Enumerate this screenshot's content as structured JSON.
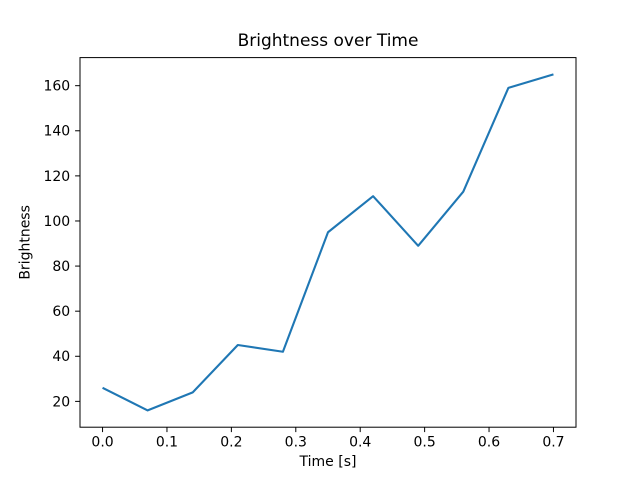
{
  "chart_data": {
    "type": "line",
    "title": "Brightness over Time",
    "xlabel": "Time [s]",
    "ylabel": "Brightness",
    "x": [
      0.0,
      0.07,
      0.14,
      0.21,
      0.28,
      0.35,
      0.42,
      0.49,
      0.56,
      0.63,
      0.7
    ],
    "y": [
      26,
      16,
      24,
      45,
      42,
      95,
      111,
      89,
      113,
      159,
      165
    ],
    "series_name": "Brightness",
    "x_ticks": [
      0.0,
      0.1,
      0.2,
      0.3,
      0.4,
      0.5,
      0.6,
      0.7
    ],
    "x_tick_labels": [
      "0.0",
      "0.1",
      "0.2",
      "0.3",
      "0.4",
      "0.5",
      "0.6",
      "0.7"
    ],
    "y_ticks": [
      20,
      40,
      60,
      80,
      100,
      120,
      140,
      160
    ],
    "y_tick_labels": [
      "20",
      "40",
      "60",
      "80",
      "100",
      "120",
      "140",
      "160"
    ],
    "xlim": [
      -0.035,
      0.735
    ],
    "ylim": [
      8.55,
      172.45
    ],
    "grid": false,
    "legend": null,
    "line_color": "#1f77b4",
    "axis_color": "#000000",
    "background_color": "#ffffff"
  }
}
